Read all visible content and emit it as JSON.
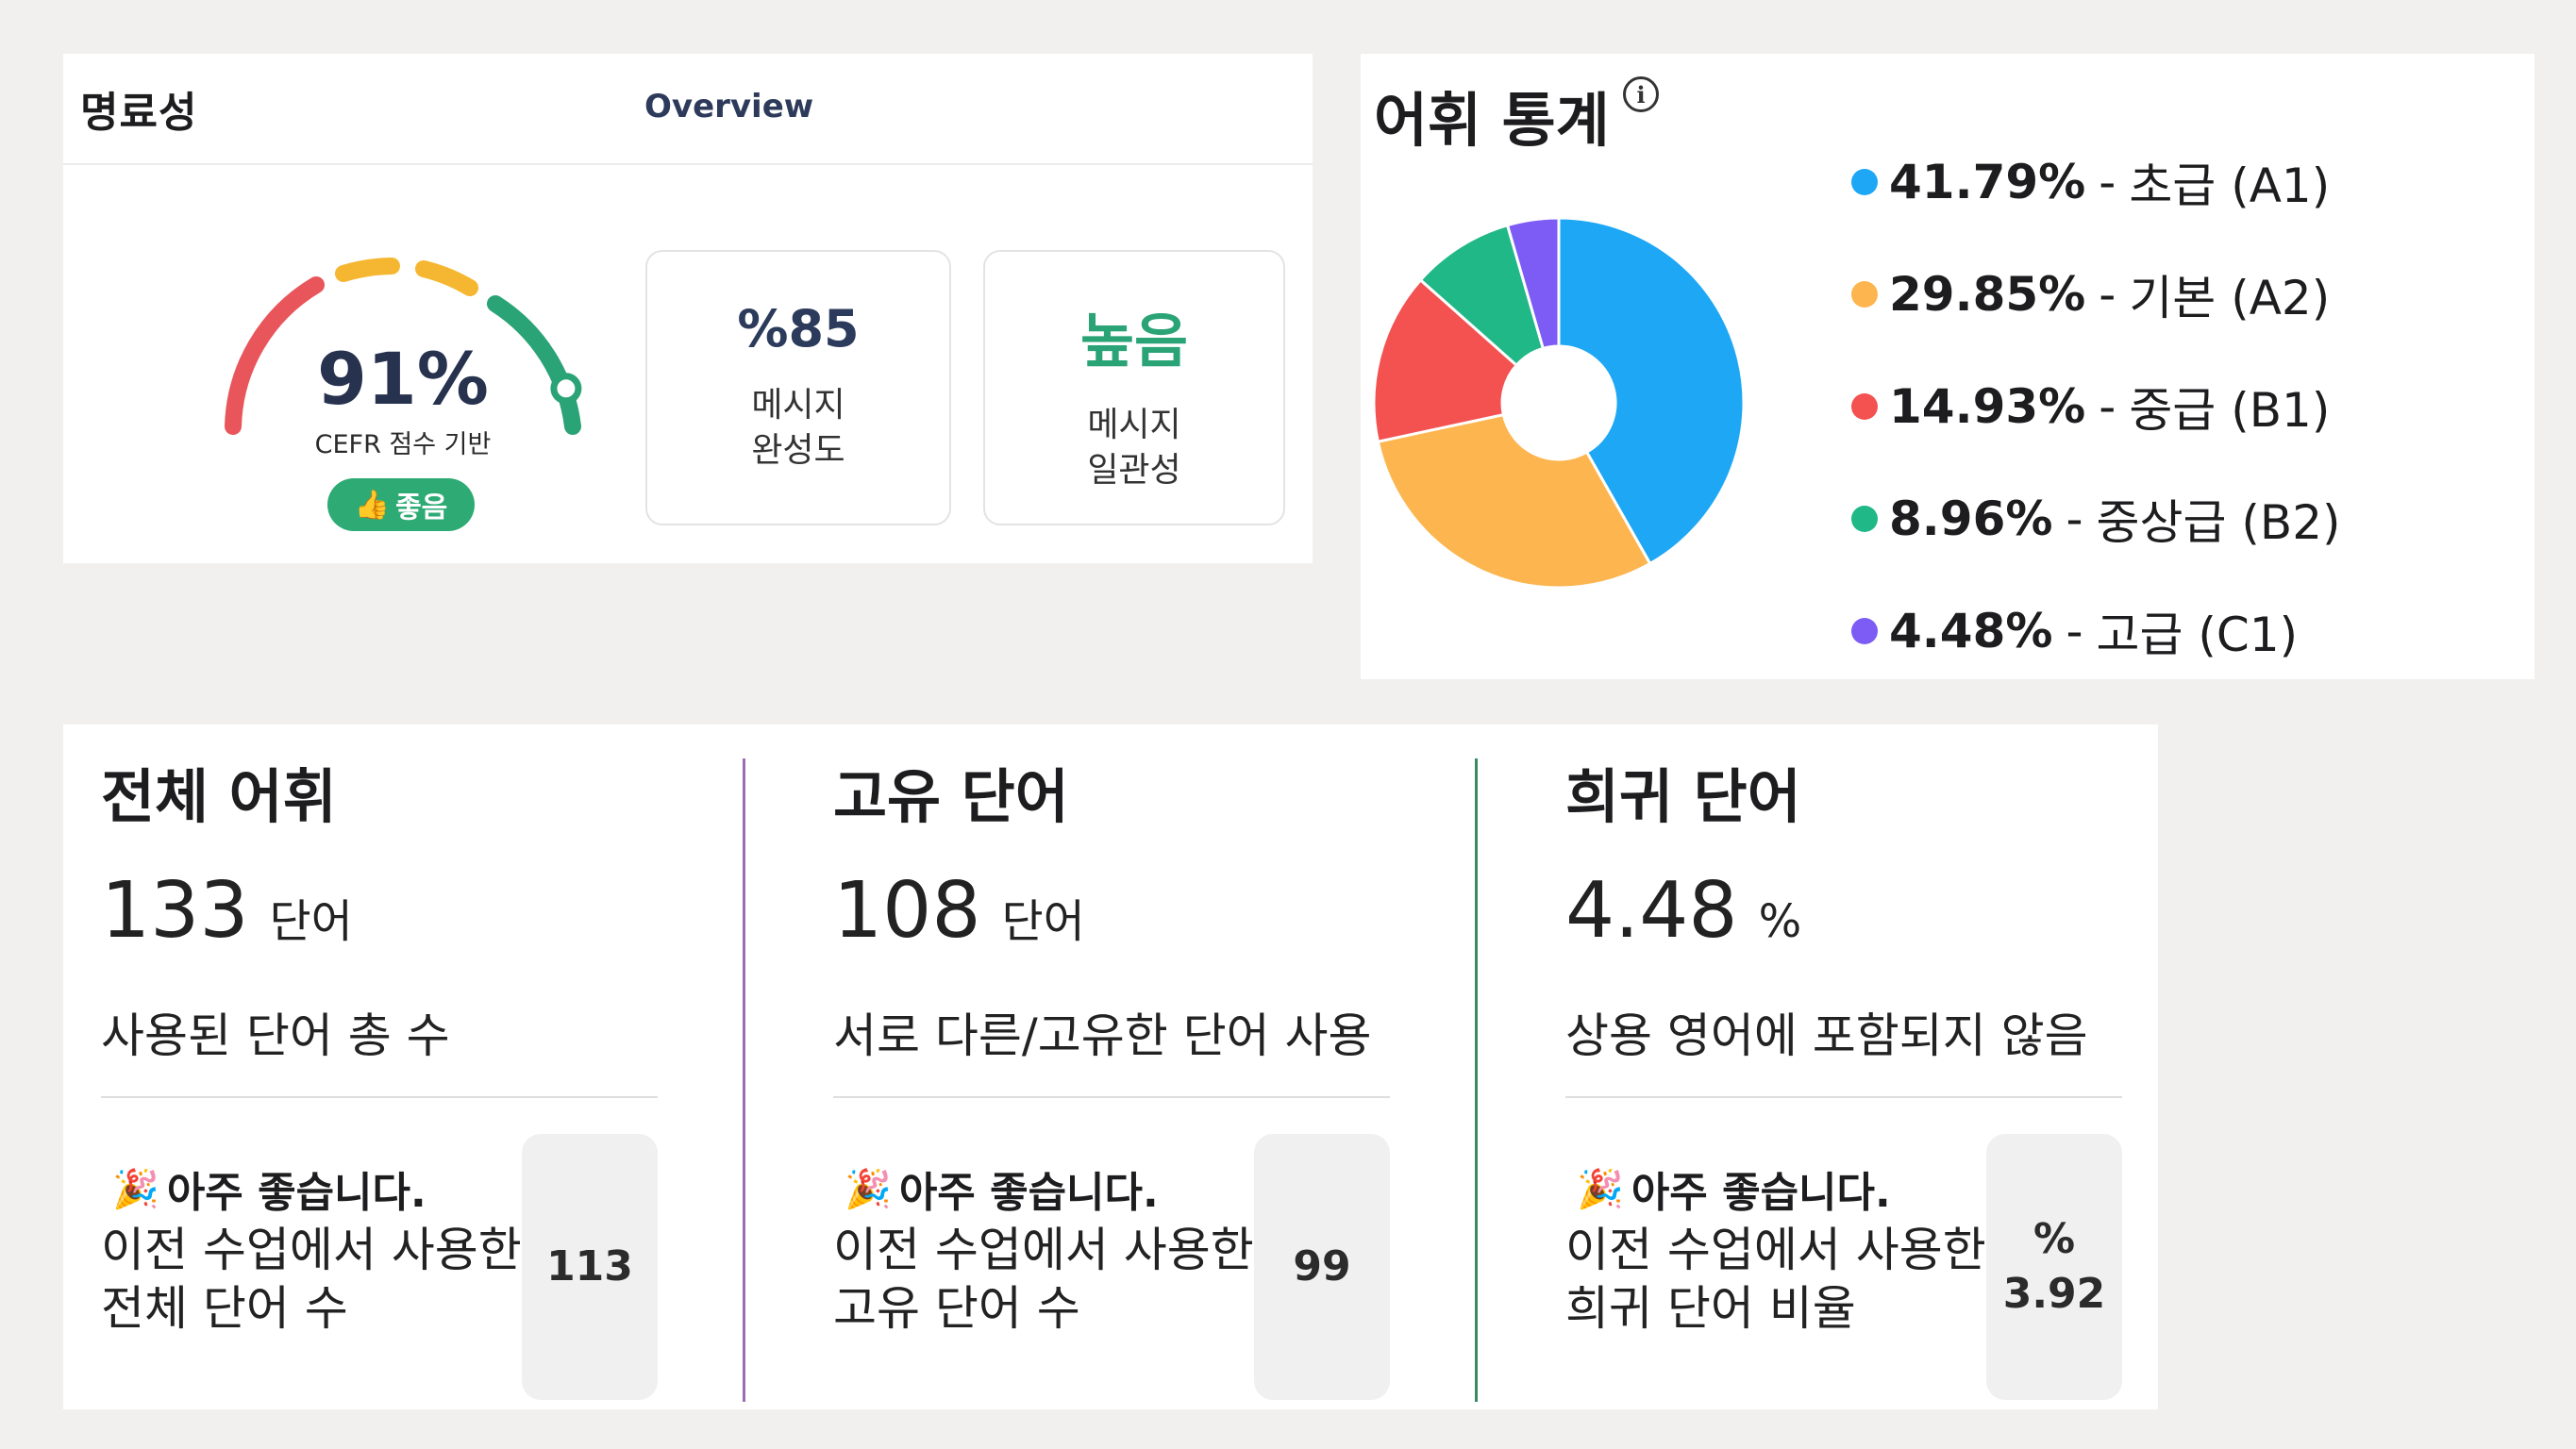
{
  "clarity": {
    "title": "명료성",
    "tab": "Overview",
    "gauge": {
      "value": "91%",
      "fraction": 0.91,
      "subtitle": "CEFR 점수 기반",
      "badge": "좋음",
      "badge_icon": "thumbs-up-icon"
    },
    "metrics": [
      {
        "value": "%85",
        "label_line1": "메시지",
        "label_line2": "완성도"
      },
      {
        "value": "높음",
        "label_line1": "메시지",
        "label_line2": "일관성"
      }
    ],
    "colors": {
      "accent": "#2aa376",
      "navy": "#2c3a5b",
      "red": "#e8555a",
      "orange": "#f5b731"
    }
  },
  "vocab_stats": {
    "title": "어휘 통계",
    "info_icon": "info-icon",
    "legend": [
      {
        "pct": "41.79%",
        "label": "초급 (A1)",
        "color": "#1ea7f5"
      },
      {
        "pct": "29.85%",
        "label": "기본 (A2)",
        "color": "#fdb54f"
      },
      {
        "pct": "14.93%",
        "label": "중급 (B1)",
        "color": "#f45151"
      },
      {
        "pct": "8.96%",
        "label": "중상급 (B2)",
        "color": "#20b887"
      },
      {
        "pct": "4.48%",
        "label": "고급 (C1)",
        "color": "#7c5cf5"
      }
    ]
  },
  "chart_data": {
    "type": "pie",
    "categories": [
      "초급 (A1)",
      "기본 (A2)",
      "중급 (B1)",
      "중상급 (B2)",
      "고급 (C1)"
    ],
    "values": [
      41.79,
      29.85,
      14.93,
      8.96,
      4.48
    ],
    "colors": [
      "#1ea7f5",
      "#fdb54f",
      "#f45151",
      "#20b887",
      "#7c5cf5"
    ],
    "legend": "right",
    "donut": true
  },
  "stats": [
    {
      "title": "전체 어휘",
      "value": "133",
      "unit": "단어",
      "desc": "사용된 단어 총 수",
      "note_head": "아주 좋습니다.",
      "note_line1": "이전 수업에서 사용한",
      "note_line2": "전체 단어 수",
      "prev_line1": "",
      "prev_line2": "113"
    },
    {
      "title": "고유 단어",
      "value": "108",
      "unit": "단어",
      "desc": "서로 다른/고유한 단어 사용",
      "note_head": "아주 좋습니다.",
      "note_line1": "이전 수업에서 사용한",
      "note_line2": "고유 단어 수",
      "prev_line1": "",
      "prev_line2": "99"
    },
    {
      "title": "희귀 단어",
      "value": "4.48",
      "unit": "%",
      "desc": "상용 영어에 포함되지 않음",
      "note_head": "아주 좋습니다.",
      "note_line1": "이전 수업에서 사용한",
      "note_line2": "희귀 단어 비율",
      "prev_line1": "%",
      "prev_line2": "3.92"
    }
  ]
}
